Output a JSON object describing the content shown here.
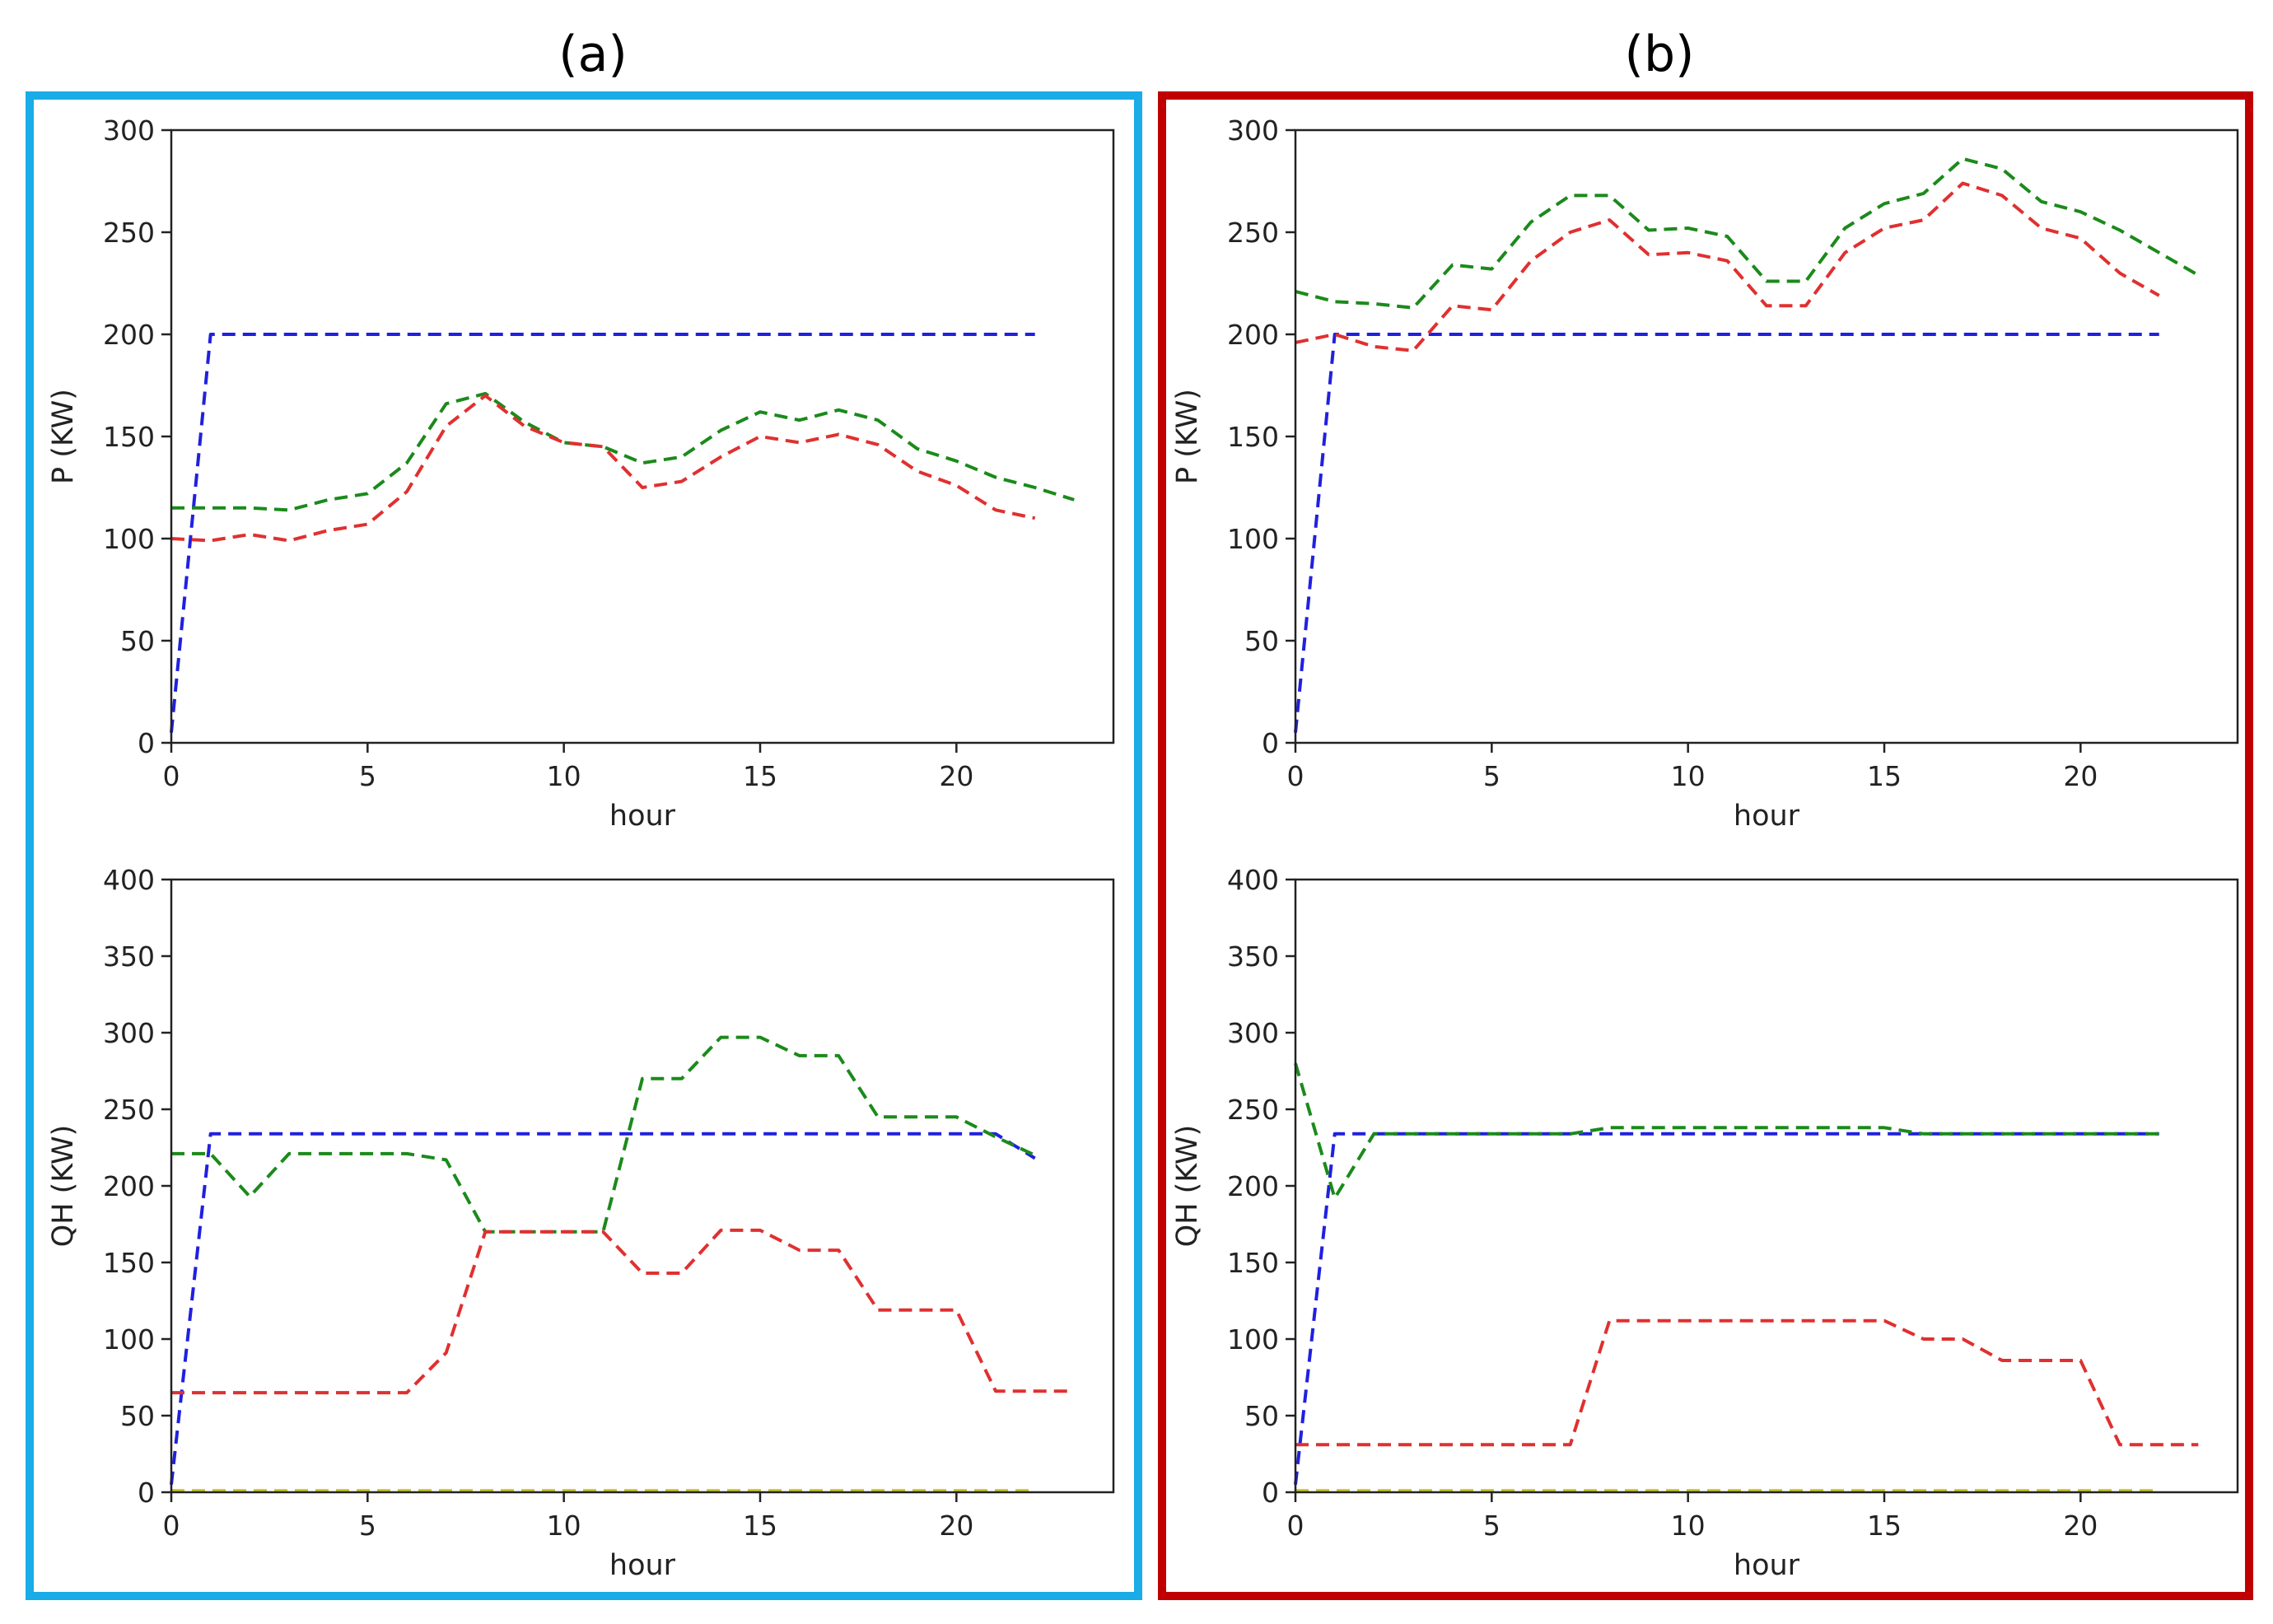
{
  "panels": [
    {
      "label": "(a)",
      "border_color": "#19ACE6"
    },
    {
      "label": "(b)",
      "border_color": "#C00000"
    }
  ],
  "chart_data": [
    {
      "id": "a-top",
      "type": "line",
      "panel": "(a)",
      "xlabel": "hour",
      "ylabel": "P (KW)",
      "xlim": [
        0,
        24
      ],
      "ylim": [
        0,
        300
      ],
      "xticks": [
        0,
        5,
        10,
        15,
        20
      ],
      "yticks": [
        0,
        50,
        100,
        150,
        200,
        250,
        300
      ],
      "legend": "none",
      "grid": false,
      "series": [
        {
          "name": "blue",
          "color": "#2020E0",
          "x": [
            0,
            1,
            2,
            3,
            4,
            5,
            6,
            7,
            8,
            9,
            10,
            11,
            12,
            13,
            14,
            15,
            16,
            17,
            18,
            19,
            20,
            21,
            22
          ],
          "y": [
            5,
            200,
            200,
            200,
            200,
            200,
            200,
            200,
            200,
            200,
            200,
            200,
            200,
            200,
            200,
            200,
            200,
            200,
            200,
            200,
            200,
            200,
            200
          ]
        },
        {
          "name": "green",
          "color": "#1B8A1B",
          "x": [
            0,
            1,
            2,
            3,
            4,
            5,
            6,
            7,
            8,
            9,
            10,
            11,
            12,
            13,
            14,
            15,
            16,
            17,
            18,
            19,
            20,
            21,
            22,
            23
          ],
          "y": [
            115,
            115,
            115,
            114,
            119,
            122,
            137,
            166,
            171,
            157,
            147,
            145,
            137,
            140,
            153,
            162,
            158,
            163,
            158,
            144,
            138,
            130,
            125,
            119
          ]
        },
        {
          "name": "red",
          "color": "#E03030",
          "x": [
            0,
            1,
            2,
            3,
            4,
            5,
            6,
            7,
            8,
            9,
            10,
            11,
            12,
            13,
            14,
            15,
            16,
            17,
            18,
            19,
            20,
            21,
            22
          ],
          "y": [
            100,
            99,
            102,
            99,
            104,
            107,
            123,
            155,
            170,
            155,
            147,
            145,
            125,
            128,
            140,
            150,
            147,
            151,
            146,
            133,
            126,
            114,
            110
          ]
        }
      ]
    },
    {
      "id": "a-bottom",
      "type": "line",
      "panel": "(a)",
      "xlabel": "hour",
      "ylabel": "QH (KW)",
      "xlim": [
        0,
        24
      ],
      "ylim": [
        0,
        400
      ],
      "xticks": [
        0,
        5,
        10,
        15,
        20
      ],
      "yticks": [
        0,
        50,
        100,
        150,
        200,
        250,
        300,
        350,
        400
      ],
      "legend": "none",
      "grid": false,
      "series": [
        {
          "name": "blue",
          "color": "#2020E0",
          "x": [
            0,
            1,
            2,
            3,
            4,
            5,
            6,
            7,
            8,
            9,
            10,
            11,
            12,
            13,
            14,
            15,
            16,
            17,
            18,
            19,
            20,
            21,
            22
          ],
          "y": [
            5,
            234,
            234,
            234,
            234,
            234,
            234,
            234,
            234,
            234,
            234,
            234,
            234,
            234,
            234,
            234,
            234,
            234,
            234,
            234,
            234,
            234,
            218
          ]
        },
        {
          "name": "green",
          "color": "#1B8A1B",
          "x": [
            0,
            1,
            2,
            3,
            4,
            5,
            6,
            7,
            8,
            9,
            10,
            11,
            12,
            13,
            14,
            15,
            16,
            17,
            18,
            19,
            20,
            21,
            22
          ],
          "y": [
            221,
            221,
            193,
            221,
            221,
            221,
            221,
            217,
            170,
            170,
            170,
            170,
            270,
            270,
            297,
            297,
            285,
            285,
            245,
            245,
            245,
            232,
            220
          ]
        },
        {
          "name": "red",
          "color": "#E03030",
          "x": [
            0,
            1,
            2,
            3,
            4,
            5,
            6,
            7,
            8,
            9,
            10,
            11,
            12,
            13,
            14,
            15,
            16,
            17,
            18,
            19,
            20,
            21,
            22,
            23
          ],
          "y": [
            65,
            65,
            65,
            65,
            65,
            65,
            65,
            91,
            170,
            170,
            170,
            170,
            143,
            143,
            171,
            171,
            158,
            158,
            119,
            119,
            119,
            66,
            66,
            66
          ]
        },
        {
          "name": "yellow",
          "color": "#C8C820",
          "x": [
            0,
            22
          ],
          "y": [
            1,
            1
          ]
        }
      ]
    },
    {
      "id": "b-top",
      "type": "line",
      "panel": "(b)",
      "xlabel": "hour",
      "ylabel": "P (KW)",
      "xlim": [
        0,
        24
      ],
      "ylim": [
        0,
        300
      ],
      "xticks": [
        0,
        5,
        10,
        15,
        20
      ],
      "yticks": [
        0,
        50,
        100,
        150,
        200,
        250,
        300
      ],
      "legend": "none",
      "grid": false,
      "series": [
        {
          "name": "blue",
          "color": "#2020E0",
          "x": [
            0,
            1,
            2,
            3,
            4,
            5,
            6,
            7,
            8,
            9,
            10,
            11,
            12,
            13,
            14,
            15,
            16,
            17,
            18,
            19,
            20,
            21,
            22
          ],
          "y": [
            5,
            200,
            200,
            200,
            200,
            200,
            200,
            200,
            200,
            200,
            200,
            200,
            200,
            200,
            200,
            200,
            200,
            200,
            200,
            200,
            200,
            200,
            200
          ]
        },
        {
          "name": "green",
          "color": "#1B8A1B",
          "x": [
            0,
            1,
            2,
            3,
            4,
            5,
            6,
            7,
            8,
            9,
            10,
            11,
            12,
            13,
            14,
            15,
            16,
            17,
            18,
            19,
            20,
            21,
            22,
            23
          ],
          "y": [
            221,
            216,
            215,
            213,
            234,
            232,
            255,
            268,
            268,
            251,
            252,
            248,
            226,
            226,
            252,
            264,
            269,
            286,
            281,
            265,
            260,
            251,
            240,
            229
          ]
        },
        {
          "name": "red",
          "color": "#E03030",
          "x": [
            0,
            1,
            2,
            3,
            4,
            5,
            6,
            7,
            8,
            9,
            10,
            11,
            12,
            13,
            14,
            15,
            16,
            17,
            18,
            19,
            20,
            21,
            22
          ],
          "y": [
            196,
            200,
            194,
            192,
            214,
            212,
            236,
            250,
            256,
            239,
            240,
            236,
            214,
            214,
            240,
            252,
            256,
            274,
            268,
            252,
            247,
            230,
            219
          ]
        }
      ]
    },
    {
      "id": "b-bottom",
      "type": "line",
      "panel": "(b)",
      "xlabel": "hour",
      "ylabel": "QH (KW)",
      "xlim": [
        0,
        24
      ],
      "ylim": [
        0,
        400
      ],
      "xticks": [
        0,
        5,
        10,
        15,
        20
      ],
      "yticks": [
        0,
        50,
        100,
        150,
        200,
        250,
        300,
        350,
        400
      ],
      "legend": "none",
      "grid": false,
      "series": [
        {
          "name": "blue",
          "color": "#2020E0",
          "x": [
            0,
            1,
            2,
            3,
            4,
            5,
            6,
            7,
            8,
            9,
            10,
            11,
            12,
            13,
            14,
            15,
            16,
            17,
            18,
            19,
            20,
            21,
            22
          ],
          "y": [
            5,
            234,
            234,
            234,
            234,
            234,
            234,
            234,
            234,
            234,
            234,
            234,
            234,
            234,
            234,
            234,
            234,
            234,
            234,
            234,
            234,
            234,
            234
          ]
        },
        {
          "name": "green",
          "color": "#1B8A1B",
          "x": [
            0,
            1,
            2,
            3,
            4,
            5,
            6,
            7,
            8,
            9,
            10,
            11,
            12,
            13,
            14,
            15,
            16,
            17,
            18,
            19,
            20,
            21,
            22
          ],
          "y": [
            280,
            192,
            234,
            234,
            234,
            234,
            234,
            234,
            238,
            238,
            238,
            238,
            238,
            238,
            238,
            238,
            234,
            234,
            234,
            234,
            234,
            234,
            234
          ]
        },
        {
          "name": "red",
          "color": "#E03030",
          "x": [
            0,
            1,
            2,
            3,
            4,
            5,
            6,
            7,
            8,
            9,
            10,
            11,
            12,
            13,
            14,
            15,
            16,
            17,
            18,
            19,
            20,
            21,
            22,
            23
          ],
          "y": [
            31,
            31,
            31,
            31,
            31,
            31,
            31,
            31,
            112,
            112,
            112,
            112,
            112,
            112,
            112,
            112,
            100,
            100,
            86,
            86,
            86,
            31,
            31,
            31
          ]
        },
        {
          "name": "yellow",
          "color": "#C8C820",
          "x": [
            0,
            22
          ],
          "y": [
            1,
            1
          ]
        }
      ]
    }
  ]
}
